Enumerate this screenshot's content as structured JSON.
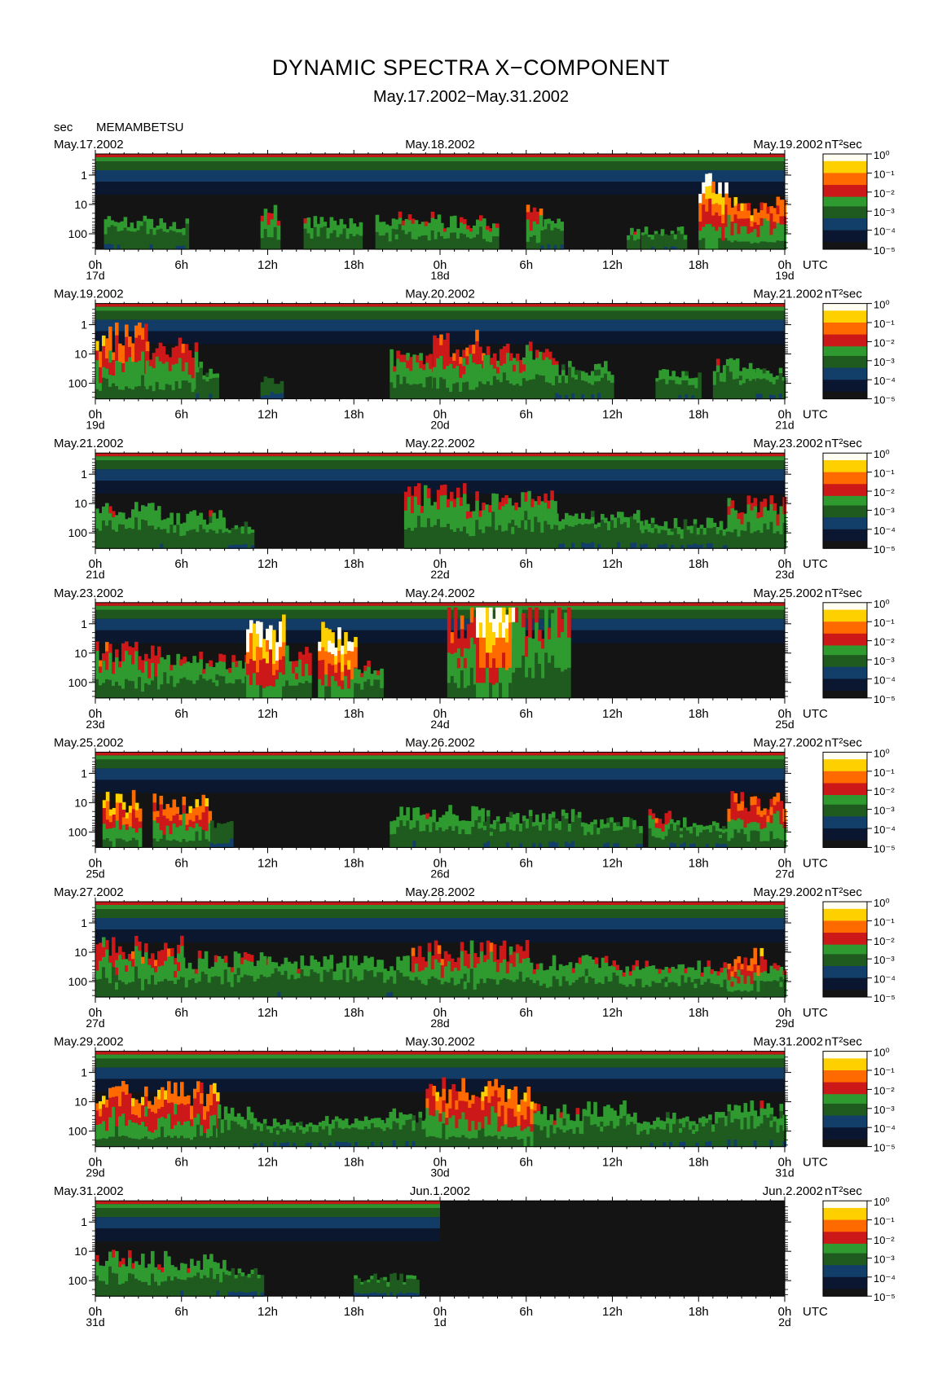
{
  "header": {
    "title": "DYNAMIC SPECTRA X−COMPONENT",
    "subtitle": "May.17.2002−May.31.2002",
    "unit": "sec",
    "station": "MEMAMBETSU"
  },
  "chart_data": {
    "type": "heatmap",
    "y_tick_labels": [
      "1",
      "10",
      "100"
    ],
    "x_tick_labels": [
      "0h",
      "6h",
      "12h",
      "18h",
      "0h",
      "6h",
      "12h",
      "18h",
      "0h"
    ],
    "axis_unit": "UTC",
    "colorbar": {
      "unit": "nT²sec",
      "tick_labels": [
        "10⁰",
        "10⁻¹",
        "10⁻²",
        "10⁻³",
        "10⁻⁴",
        "10⁻⁵"
      ],
      "colors": [
        "#141414",
        "#0b1630",
        "#123e6a",
        "#1f5a1f",
        "#2f9a2f",
        "#cc1818",
        "#ff6a00",
        "#ffd000",
        "#fffef0"
      ]
    },
    "panels": [
      {
        "start": "May.17.2002",
        "mid": "May.18.2002",
        "end": "May.19.2002",
        "day_labels": [
          "17d",
          "18d",
          "19d"
        ],
        "events": [
          [
            0.6,
            3.8,
            0.9,
            0.3
          ],
          [
            4.0,
            6.3,
            0.8,
            0.3
          ],
          [
            11.5,
            12.7,
            1.2,
            0.45
          ],
          [
            14.5,
            18.5,
            0.9,
            0.35
          ],
          [
            19.5,
            24.0,
            1.0,
            0.4
          ],
          [
            24.0,
            28.0,
            0.9,
            0.4
          ],
          [
            30.0,
            31.0,
            1.2,
            0.55
          ],
          [
            31.0,
            32.5,
            0.8,
            0.3
          ],
          [
            37.0,
            37.8,
            0.6,
            0.4
          ],
          [
            38.0,
            41.0,
            0.6,
            0.3
          ],
          [
            42.0,
            44.0,
            2.0,
            0.9
          ],
          [
            44.0,
            48.0,
            1.4,
            0.7
          ]
        ]
      },
      {
        "start": "May.19.2002",
        "mid": "May.20.2002",
        "end": "May.21.2002",
        "day_labels": [
          "19d",
          "20d",
          "21d"
        ],
        "events": [
          [
            0.0,
            3.5,
            2.0,
            0.65
          ],
          [
            3.5,
            7.0,
            1.6,
            0.55
          ],
          [
            7.0,
            8.5,
            1.0,
            0.3
          ],
          [
            11.5,
            13.0,
            0.6,
            0.2
          ],
          [
            20.5,
            23.5,
            1.3,
            0.45
          ],
          [
            23.5,
            27.0,
            1.8,
            0.55
          ],
          [
            27.0,
            32.0,
            1.5,
            0.45
          ],
          [
            32.0,
            36.0,
            1.0,
            0.3
          ],
          [
            39.0,
            42.0,
            0.8,
            0.3
          ],
          [
            43.0,
            46.0,
            1.1,
            0.35
          ],
          [
            46.0,
            48.0,
            0.8,
            0.3
          ]
        ]
      },
      {
        "start": "May.21.2002",
        "mid": "May.22.2002",
        "end": "May.23.2002",
        "day_labels": [
          "21d",
          "22d",
          "23d"
        ],
        "events": [
          [
            0.0,
            4.5,
            1.2,
            0.35
          ],
          [
            4.5,
            9.0,
            1.0,
            0.35
          ],
          [
            9.0,
            11.0,
            0.7,
            0.25
          ],
          [
            21.5,
            26.0,
            1.7,
            0.45
          ],
          [
            26.0,
            32.0,
            1.5,
            0.4
          ],
          [
            32.0,
            38.0,
            1.0,
            0.3
          ],
          [
            38.0,
            44.0,
            0.8,
            0.3
          ],
          [
            44.0,
            48.0,
            1.4,
            0.45
          ]
        ]
      },
      {
        "start": "May.23.2002",
        "mid": "May.24.2002",
        "end": "May.25.2002",
        "day_labels": [
          "23d",
          "24d",
          "25d"
        ],
        "events": [
          [
            0.0,
            4.5,
            1.5,
            0.5
          ],
          [
            4.5,
            10.5,
            1.2,
            0.4
          ],
          [
            10.5,
            13.0,
            2.2,
            0.95
          ],
          [
            13.0,
            15.0,
            1.4,
            0.5
          ],
          [
            15.5,
            18.0,
            2.1,
            0.95
          ],
          [
            18.0,
            20.0,
            1.0,
            0.4
          ],
          [
            24.5,
            26.5,
            2.5,
            0.55
          ],
          [
            26.5,
            29.0,
            3.4,
            1.0
          ],
          [
            29.0,
            33.0,
            2.5,
            0.45
          ]
        ]
      },
      {
        "start": "May.25.2002",
        "mid": "May.26.2002",
        "end": "May.27.2002",
        "day_labels": [
          "25d",
          "26d",
          "27d"
        ],
        "events": [
          [
            0.5,
            3.0,
            1.5,
            0.75
          ],
          [
            4.0,
            8.0,
            1.4,
            0.7
          ],
          [
            8.0,
            9.5,
            0.8,
            0.2
          ],
          [
            20.5,
            27.0,
            1.1,
            0.35
          ],
          [
            27.0,
            34.0,
            1.0,
            0.3
          ],
          [
            34.0,
            38.0,
            0.8,
            0.3
          ],
          [
            38.5,
            40.0,
            1.0,
            0.5
          ],
          [
            40.0,
            44.0,
            0.8,
            0.3
          ],
          [
            44.0,
            48.0,
            1.5,
            0.6
          ]
        ]
      },
      {
        "start": "May.27.2002",
        "mid": "May.28.2002",
        "end": "May.29.2002",
        "day_labels": [
          "27d",
          "28d",
          "29d"
        ],
        "events": [
          [
            0.0,
            6.0,
            1.6,
            0.5
          ],
          [
            6.0,
            12.0,
            1.2,
            0.4
          ],
          [
            12.0,
            18.0,
            1.1,
            0.35
          ],
          [
            18.0,
            22.0,
            1.1,
            0.35
          ],
          [
            22.0,
            30.0,
            1.5,
            0.5
          ],
          [
            30.0,
            36.0,
            1.1,
            0.4
          ],
          [
            36.0,
            44.0,
            1.0,
            0.4
          ],
          [
            44.0,
            46.5,
            1.3,
            0.65
          ],
          [
            46.5,
            48.0,
            1.0,
            0.4
          ]
        ]
      },
      {
        "start": "May.29.2002",
        "mid": "May.30.2002",
        "end": "May.31.2002",
        "day_labels": [
          "29d",
          "30d",
          "31d"
        ],
        "events": [
          [
            0.0,
            8.5,
            1.7,
            0.7
          ],
          [
            8.5,
            11.0,
            1.1,
            0.35
          ],
          [
            11.0,
            20.0,
            0.8,
            0.3
          ],
          [
            20.0,
            23.0,
            1.0,
            0.3
          ],
          [
            23.0,
            28.0,
            1.8,
            0.65
          ],
          [
            28.0,
            30.5,
            1.6,
            0.75
          ],
          [
            30.5,
            34.0,
            1.1,
            0.4
          ],
          [
            34.0,
            37.0,
            1.2,
            0.35
          ],
          [
            37.0,
            44.0,
            0.9,
            0.3
          ],
          [
            44.0,
            48.0,
            1.2,
            0.35
          ]
        ]
      },
      {
        "start": "May.31.2002",
        "mid": "Jun.1.2002",
        "end": "Jun.2.2002",
        "day_labels": [
          "31d",
          "1d",
          "2d"
        ],
        "data_until_hour": 24,
        "events": [
          [
            0.0,
            5.0,
            1.2,
            0.4
          ],
          [
            5.0,
            9.0,
            1.1,
            0.35
          ],
          [
            9.0,
            11.5,
            0.8,
            0.25
          ],
          [
            18.0,
            22.5,
            0.6,
            0.25
          ]
        ]
      }
    ]
  }
}
